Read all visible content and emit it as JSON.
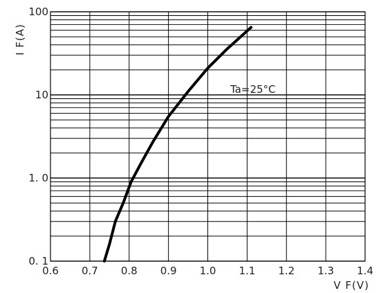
{
  "chart_data": {
    "type": "line",
    "title": "",
    "xlabel": "V F(V)",
    "ylabel": "I F(A)",
    "x_scale": "linear",
    "y_scale": "log",
    "xlim": [
      0.6,
      1.4
    ],
    "ylim": [
      0.1,
      100
    ],
    "grid": true,
    "x_ticks": [
      "0.6",
      "0.7",
      "0.8",
      "0.9",
      "1.0",
      "1.1",
      "1.2",
      "1.3",
      "1.4"
    ],
    "y_ticks": [
      "0. 1",
      "1. 0",
      "10",
      "100"
    ],
    "annotation": "Ta=25°C",
    "series": [
      {
        "x": [
          0.737,
          0.75,
          0.765,
          0.785,
          0.805,
          0.83,
          0.86,
          0.9,
          0.95,
          1.0,
          1.05,
          1.11
        ],
        "y": [
          0.1,
          0.16,
          0.3,
          0.5,
          0.9,
          1.5,
          2.7,
          5.5,
          11,
          21,
          36,
          65
        ]
      }
    ]
  }
}
